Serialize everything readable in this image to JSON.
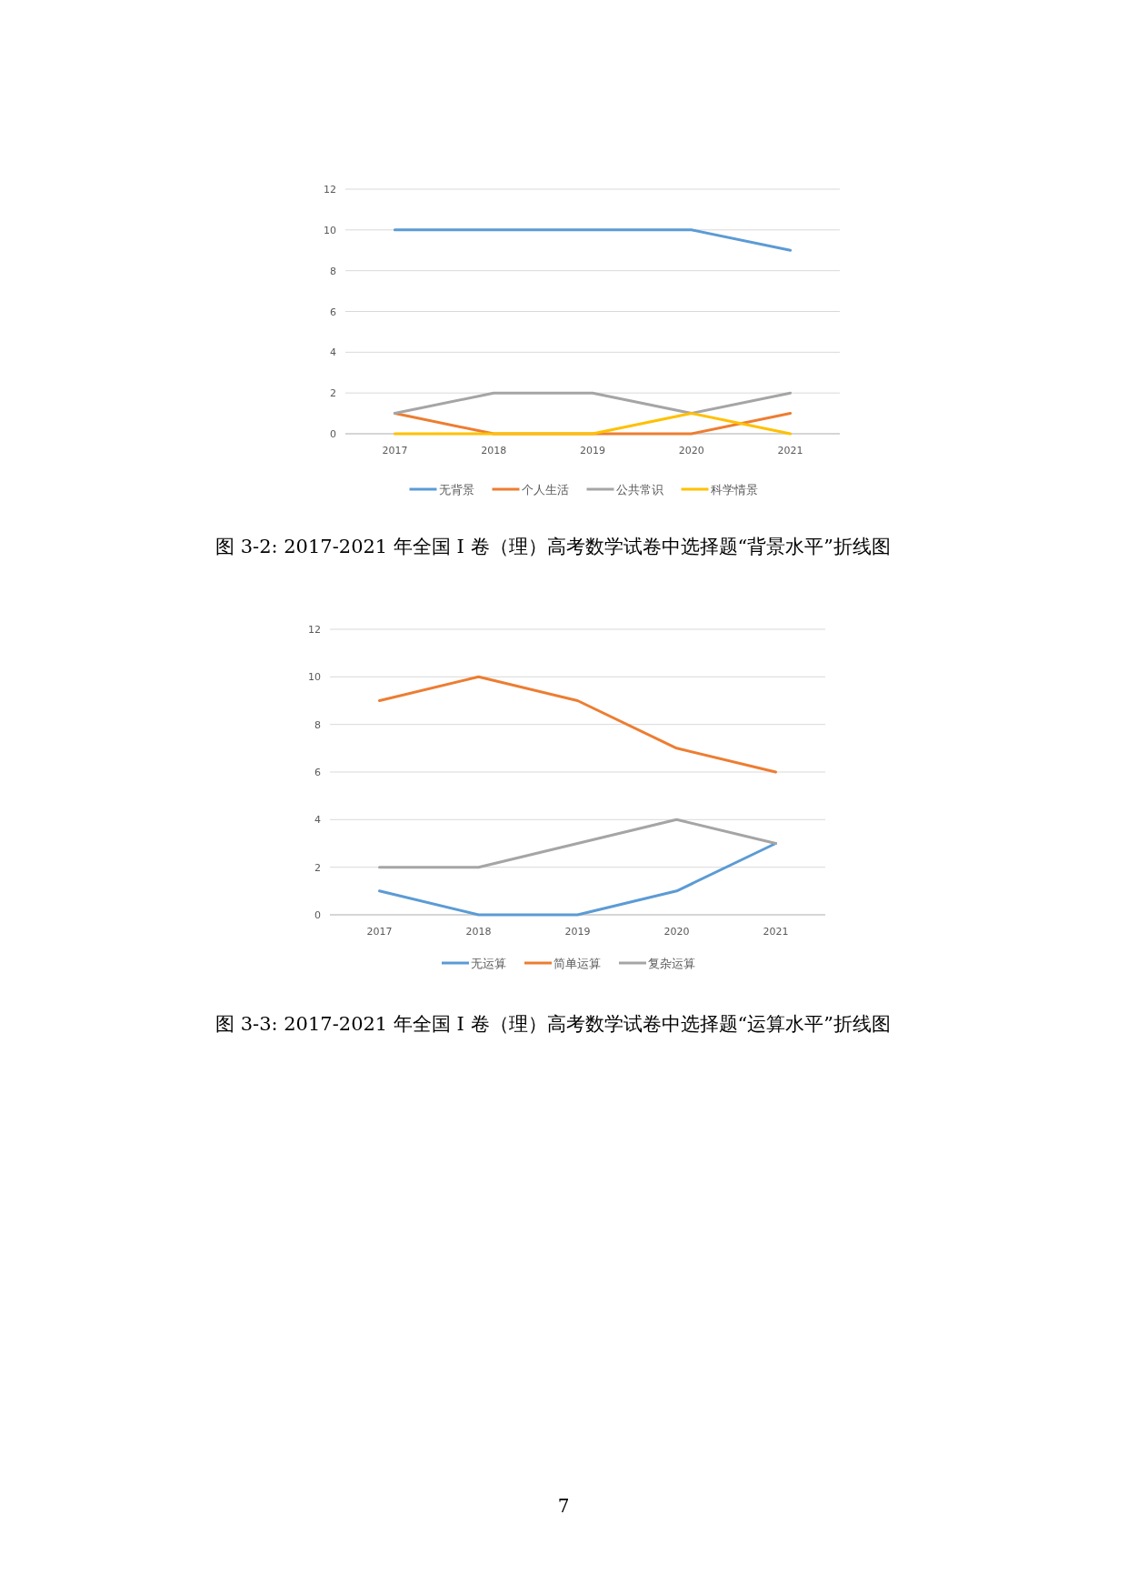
{
  "chart_data": [
    {
      "type": "line",
      "categories": [
        "2017",
        "2018",
        "2019",
        "2020",
        "2021"
      ],
      "series": [
        {
          "name": "无背景",
          "color": "#5b9bd5",
          "values": [
            10,
            10,
            10,
            10,
            9
          ]
        },
        {
          "name": "个人生活",
          "color": "#ed7d31",
          "values": [
            1,
            0,
            0,
            0,
            1
          ]
        },
        {
          "name": "公共常识",
          "color": "#a5a5a5",
          "values": [
            1,
            2,
            2,
            1,
            2
          ]
        },
        {
          "name": "科学情景",
          "color": "#ffc000",
          "values": [
            0,
            0,
            0,
            1,
            0
          ]
        }
      ],
      "ylim": [
        0,
        12
      ],
      "yticks": [
        0,
        2,
        4,
        6,
        8,
        10,
        12
      ],
      "grid": "y",
      "legend": "bottom",
      "annotations": [
        "图 3-2:  2017-2021 年全国 I 卷（理）高考数学试卷中选择题“背景水平”折线图"
      ]
    },
    {
      "type": "line",
      "categories": [
        "2017",
        "2018",
        "2019",
        "2020",
        "2021"
      ],
      "series": [
        {
          "name": "无运算",
          "color": "#5b9bd5",
          "values": [
            1,
            0,
            0,
            1,
            3
          ]
        },
        {
          "name": "简单运算",
          "color": "#ed7d31",
          "values": [
            9,
            10,
            9,
            7,
            6
          ]
        },
        {
          "name": "复杂运算",
          "color": "#a5a5a5",
          "values": [
            2,
            2,
            3,
            4,
            3
          ]
        }
      ],
      "ylim": [
        0,
        12
      ],
      "yticks": [
        0,
        2,
        4,
        6,
        8,
        10,
        12
      ],
      "grid": "y",
      "legend": "bottom",
      "annotations": [
        "图 3-3:  2017-2021 年全国 I 卷（理）高考数学试卷中选择题“运算水平”折线图",
        "7"
      ]
    }
  ]
}
